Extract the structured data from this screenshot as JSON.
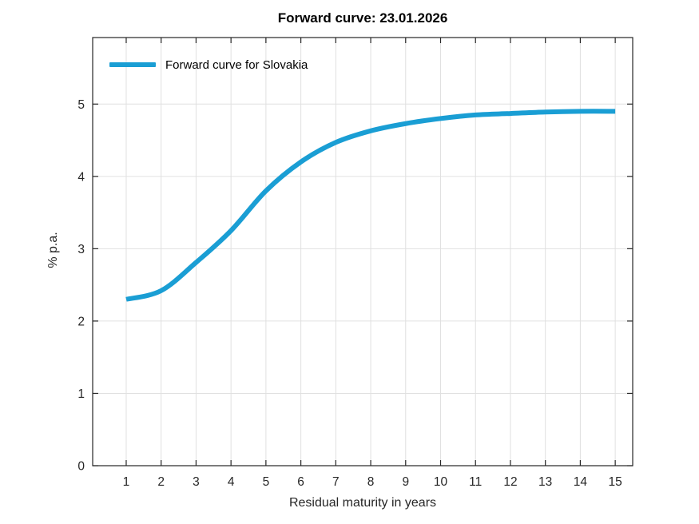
{
  "chart_data": {
    "type": "line",
    "title": "Forward curve: 23.01.2026",
    "xlabel": "Residual maturity in years",
    "ylabel": "% p.a.",
    "x": [
      1,
      2,
      3,
      4,
      5,
      6,
      7,
      8,
      9,
      10,
      11,
      12,
      13,
      14,
      15
    ],
    "series": [
      {
        "name": "Forward curve for Slovakia",
        "color": "#1a9ed4",
        "values": [
          2.3,
          2.42,
          2.81,
          3.25,
          3.8,
          4.2,
          4.47,
          4.63,
          4.73,
          4.8,
          4.85,
          4.87,
          4.89,
          4.9,
          4.9
        ]
      }
    ],
    "xlim": [
      0.04,
      15.5
    ],
    "ylim": [
      0,
      5.92
    ],
    "x_ticks": [
      1,
      2,
      3,
      4,
      5,
      6,
      7,
      8,
      9,
      10,
      11,
      12,
      13,
      14,
      15
    ],
    "y_ticks": [
      0,
      1,
      2,
      3,
      4,
      5
    ],
    "grid": true,
    "legend_position": "top-left",
    "colors": {
      "grid": "#e0e0e0",
      "axis": "#262626",
      "tick_text": "#262626",
      "background": "#ffffff"
    }
  }
}
